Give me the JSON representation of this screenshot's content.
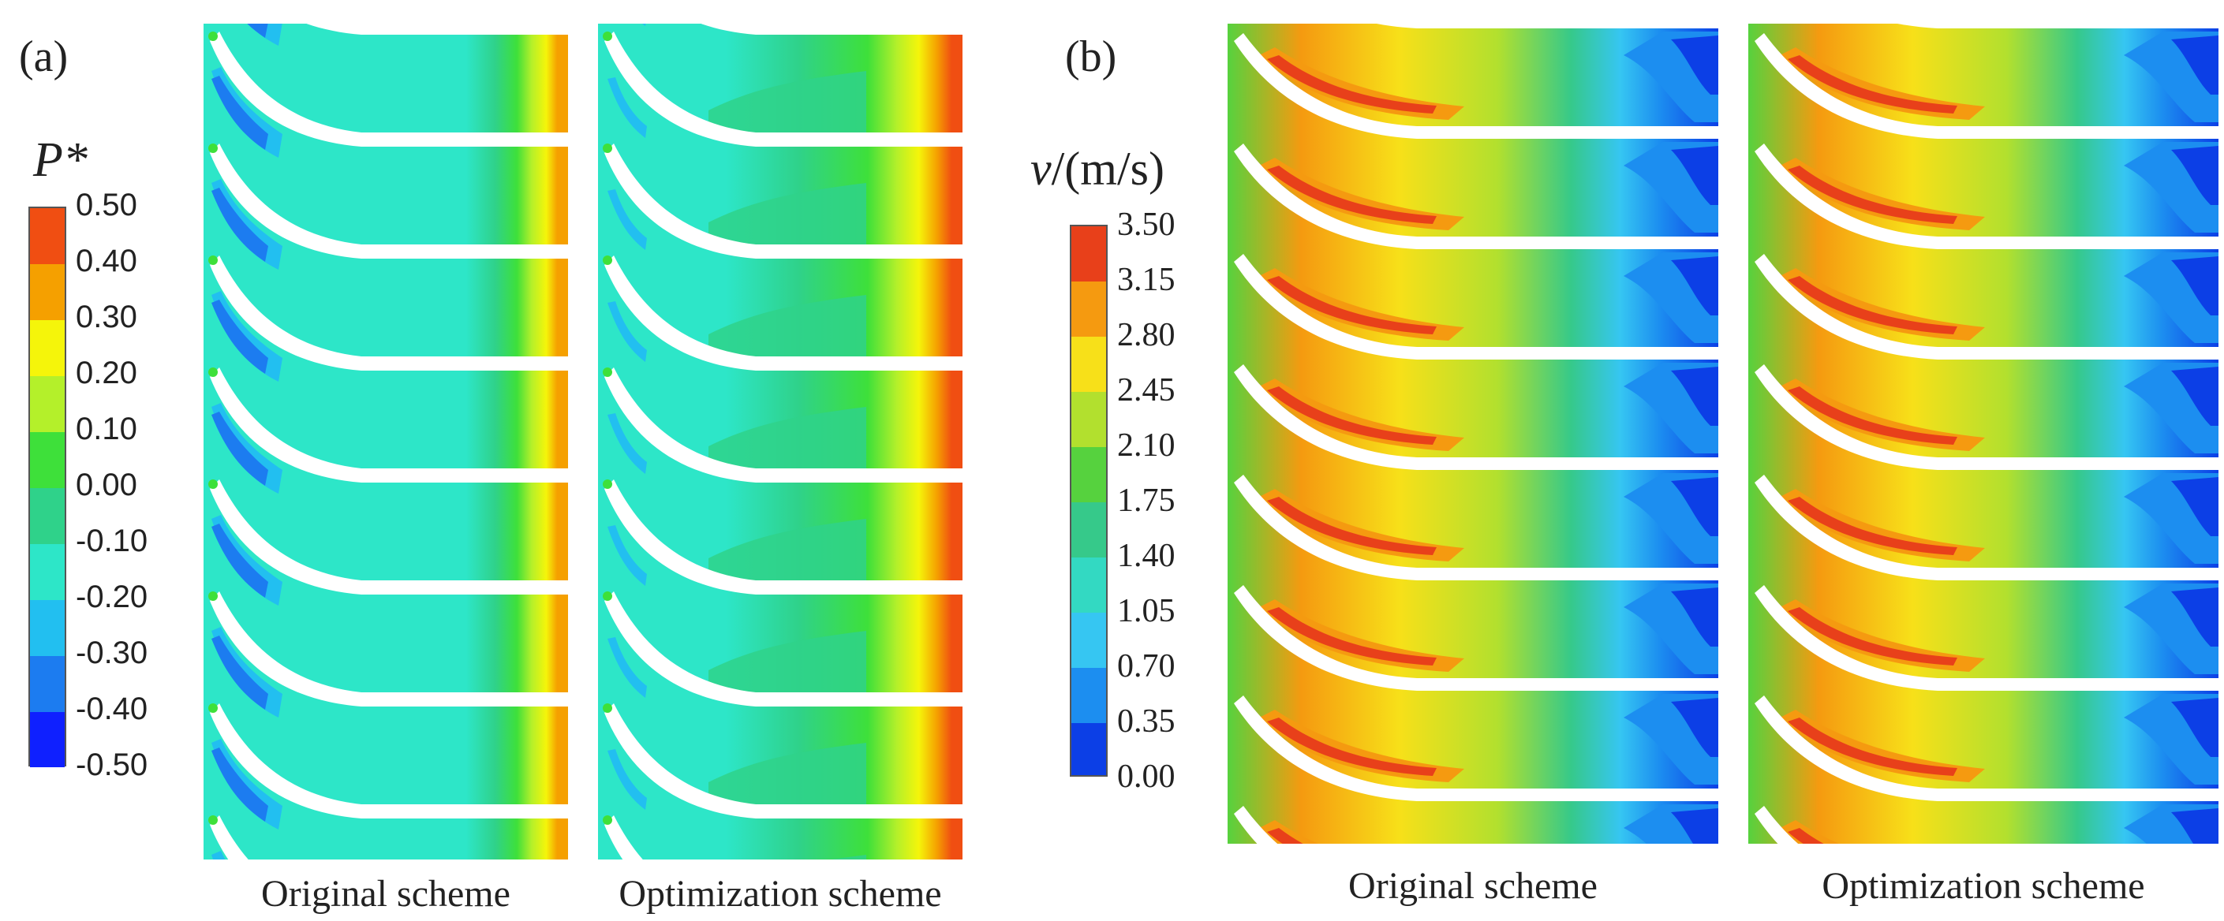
{
  "panel_a": {
    "label": "(a)",
    "legend_title": "P*",
    "ticks": [
      "0.50",
      "0.40",
      "0.30",
      "0.20",
      "0.10",
      "0.00",
      "-0.10",
      "-0.20",
      "-0.30",
      "-0.40",
      "-0.50"
    ],
    "colors": [
      "#f04e12",
      "#f5a000",
      "#f5f50a",
      "#b4f02a",
      "#3ee03a",
      "#2fd28a",
      "#2de6c8",
      "#22bff0",
      "#1c7cf0",
      "#0f20ff"
    ],
    "captions": [
      "Original scheme",
      "Optimization scheme"
    ]
  },
  "panel_b": {
    "label": "(b)",
    "legend_title": "v/(m/s)",
    "ticks": [
      "3.50",
      "3.15",
      "2.80",
      "2.45",
      "2.10",
      "1.75",
      "1.40",
      "1.05",
      "0.70",
      "0.35",
      "0.00"
    ],
    "colors": [
      "#e8401a",
      "#f59a10",
      "#f7e019",
      "#b2e02e",
      "#56d23e",
      "#36c98a",
      "#33d9c2",
      "#36c6f2",
      "#1c8ef0",
      "#0c3fe6"
    ],
    "captions": [
      "Original scheme",
      "Optimization scheme"
    ]
  }
}
